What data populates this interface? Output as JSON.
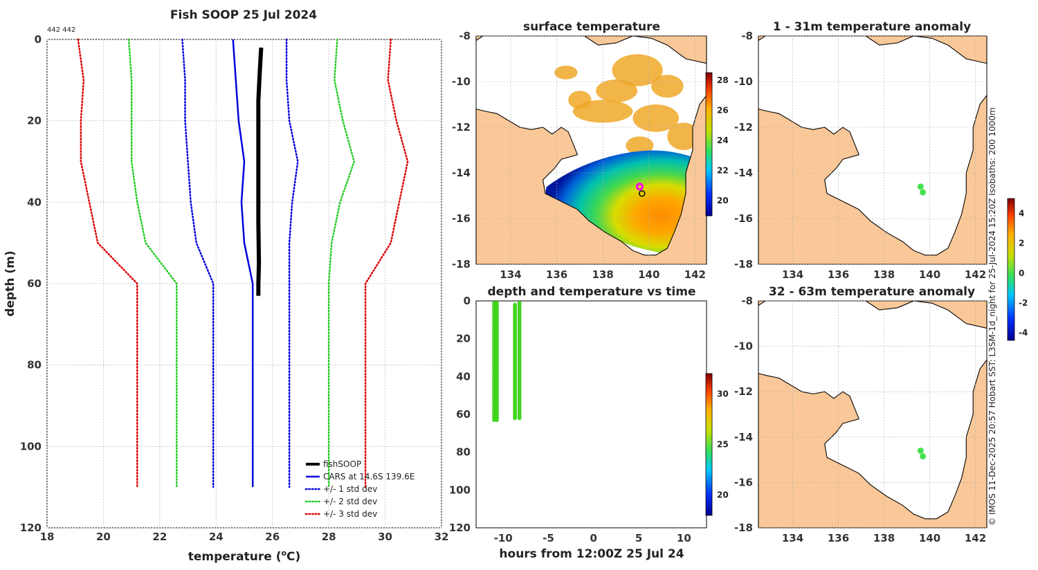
{
  "chart_data": [
    {
      "type": "line",
      "title": "Fish SOOP 25 Jul 2024",
      "counts_label": "442 442",
      "xlabel": "temperature (°C)",
      "ylabel": "depth (m)",
      "xlim": [
        18,
        32
      ],
      "ylim": [
        0,
        120
      ],
      "y_inverted": true,
      "xticks": [
        18,
        20,
        22,
        24,
        26,
        28,
        30,
        32
      ],
      "yticks": [
        0,
        20,
        40,
        60,
        80,
        100,
        120
      ],
      "grid": true,
      "legend_position": "bottom-right",
      "series": [
        {
          "name": "fishSOOP",
          "color": "#000000",
          "style": "solid",
          "x": [
            25.6,
            25.55,
            25.5,
            25.5,
            25.5,
            25.5,
            25.52,
            25.5,
            25.5
          ],
          "y": [
            2,
            8,
            15,
            25,
            35,
            45,
            55,
            60,
            63
          ]
        },
        {
          "name": "CARS at 14.6S 139.6E",
          "color": "#0000dd",
          "style": "solid",
          "x": [
            24.6,
            24.7,
            24.8,
            25.0,
            24.9,
            25.0,
            25.3,
            25.3,
            25.3
          ],
          "y": [
            0,
            10,
            20,
            30,
            40,
            50,
            60,
            80,
            110
          ]
        },
        {
          "name": "+/- 1 std dev",
          "color": "#0000dd",
          "style": "dotted",
          "x": [
            22.8,
            22.9,
            22.9,
            23.0,
            23.1,
            23.3,
            23.9,
            23.9
          ],
          "y": [
            0,
            10,
            20,
            30,
            40,
            50,
            60,
            110
          ]
        },
        {
          "name": "+/- 1 std dev",
          "color": "#0000dd",
          "style": "dotted",
          "legend": false,
          "x": [
            26.5,
            26.5,
            26.6,
            26.9,
            26.7,
            26.6,
            26.6,
            26.6
          ],
          "y": [
            0,
            10,
            20,
            30,
            40,
            50,
            60,
            110
          ]
        },
        {
          "name": "+/- 2 std dev",
          "color": "#22cc22",
          "style": "dotted",
          "x": [
            20.9,
            21.0,
            21.0,
            21.0,
            21.2,
            21.5,
            22.6,
            22.6
          ],
          "y": [
            0,
            10,
            20,
            30,
            40,
            50,
            60,
            110
          ]
        },
        {
          "name": "+/- 2 std dev",
          "color": "#22cc22",
          "style": "dotted",
          "legend": false,
          "x": [
            28.3,
            28.2,
            28.5,
            28.9,
            28.4,
            28.1,
            28.0,
            28.0
          ],
          "y": [
            0,
            10,
            20,
            30,
            40,
            50,
            60,
            110
          ]
        },
        {
          "name": "+/- 3 std dev",
          "color": "#dd0000",
          "style": "dotted",
          "x": [
            19.1,
            19.3,
            19.2,
            19.2,
            19.5,
            19.8,
            21.2,
            21.2
          ],
          "y": [
            0,
            10,
            20,
            30,
            40,
            50,
            60,
            110
          ]
        },
        {
          "name": "+/- 3 std dev",
          "color": "#dd0000",
          "style": "dotted",
          "legend": false,
          "x": [
            30.2,
            30.1,
            30.4,
            30.8,
            30.5,
            30.2,
            29.3,
            29.3
          ],
          "y": [
            0,
            10,
            20,
            30,
            40,
            50,
            60,
            110
          ]
        }
      ],
      "legend": [
        "fishSOOP",
        "CARS at 14.6S 139.6E",
        "+/- 1 std dev",
        "+/- 2 std dev",
        "+/- 3 std dev"
      ]
    },
    {
      "type": "heatmap",
      "title": "surface temperature",
      "xticks": [
        134,
        136,
        138,
        140,
        142
      ],
      "yticks": [
        -8,
        -10,
        -12,
        -14,
        -16,
        -18
      ],
      "xlim": [
        132.5,
        142.5
      ],
      "ylim": [
        -18,
        -8
      ],
      "colorbar_ticks": [
        20,
        22,
        24,
        26,
        28
      ],
      "colorbar_range": [
        19,
        28.5
      ],
      "markers": [
        {
          "lon": 139.6,
          "lat": -14.6,
          "color": "#ff00ff"
        },
        {
          "lon": 139.7,
          "lat": -14.9,
          "color": "#000000"
        }
      ]
    },
    {
      "type": "heatmap",
      "title": "1 - 31m temperature anomaly",
      "xticks": [
        134,
        136,
        138,
        140,
        142
      ],
      "yticks": [
        -8,
        -10,
        -12,
        -14,
        -16,
        -18
      ],
      "xlim": [
        132.5,
        142.5
      ],
      "ylim": [
        -18,
        -8
      ],
      "points": [
        {
          "lon": 139.6,
          "lat": -14.6,
          "value": 0
        },
        {
          "lon": 139.7,
          "lat": -14.85,
          "value": 0
        }
      ]
    },
    {
      "type": "heatmap",
      "title": "32 - 63m temperature anomaly",
      "xticks": [
        134,
        136,
        138,
        140,
        142
      ],
      "yticks": [
        -8,
        -10,
        -12,
        -14,
        -16,
        -18
      ],
      "xlim": [
        132.5,
        142.5
      ],
      "ylim": [
        -18,
        -8
      ],
      "points": [
        {
          "lon": 139.6,
          "lat": -14.6,
          "value": 0
        },
        {
          "lon": 139.7,
          "lat": -14.85,
          "value": 0
        }
      ]
    },
    {
      "type": "scatter",
      "title": "depth and temperature vs time",
      "xlabel": "hours from 12:00Z 25 Jul 24",
      "xlim": [
        -13,
        12.5
      ],
      "ylim": [
        0,
        120
      ],
      "y_inverted": true,
      "xticks": [
        -10,
        -5,
        0,
        5,
        10
      ],
      "yticks": [
        0,
        20,
        40,
        60,
        80,
        100,
        120
      ],
      "colorbar_ticks": [
        20,
        25,
        30
      ],
      "colorbar_range": [
        18,
        32
      ],
      "groups": [
        {
          "hour": -11.0,
          "depth_from": 1,
          "depth_to": 63
        },
        {
          "hour": -10.7,
          "depth_from": 1,
          "depth_to": 63
        },
        {
          "hour": -8.7,
          "depth_from": 2,
          "depth_to": 62
        },
        {
          "hour": -8.2,
          "depth_from": 1,
          "depth_to": 62
        }
      ]
    }
  ],
  "anomaly_colorbar": {
    "ticks": [
      4,
      2,
      0,
      -2,
      -4
    ],
    "range": [
      -4.5,
      5
    ]
  },
  "side_caption": "© IMOS 11-Dec-2025 20:57 Hobart SST: L3SM-1d_night for 25-Jul-2024 15:20Z Isobaths: 200  1000m"
}
